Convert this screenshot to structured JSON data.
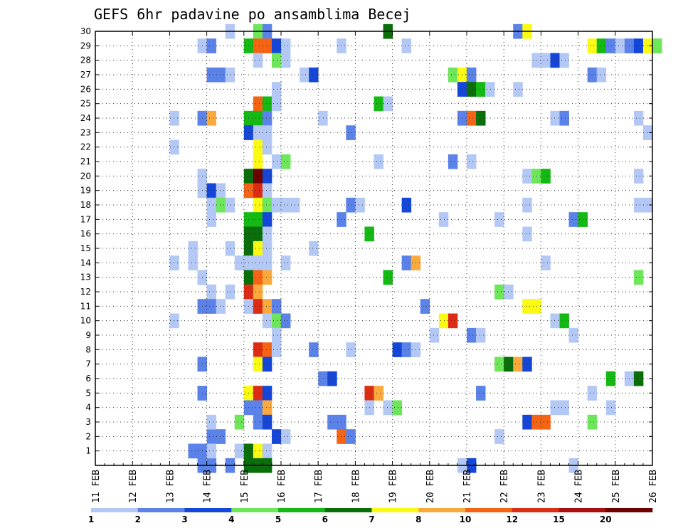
{
  "chart_data": {
    "type": "heatmap",
    "title": "GEFS 6hr padavine po ansamblima Becej",
    "xlabel": "",
    "ylabel": "",
    "y_ticks": [
      "1",
      "2",
      "3",
      "4",
      "5",
      "6",
      "7",
      "8",
      "9",
      "10",
      "11",
      "12",
      "13",
      "14",
      "15",
      "16",
      "17",
      "18",
      "19",
      "20",
      "21",
      "22",
      "23",
      "24",
      "25",
      "26",
      "27",
      "28",
      "29",
      "30"
    ],
    "x_ticks": [
      "11 FEB",
      "12 FEB",
      "13 FEB",
      "14 FEB",
      "15 FEB",
      "16 FEB",
      "17 FEB",
      "18 FEB",
      "19 FEB",
      "20 FEB",
      "21 FEB",
      "22 FEB",
      "23 FEB",
      "24 FEB",
      "25 FEB",
      "26 FEB"
    ],
    "x_range_days": [
      0,
      15
    ],
    "y_range": [
      0,
      30
    ],
    "grid": true,
    "colorbar": {
      "labels": [
        "1",
        "2",
        "3",
        "4",
        "5",
        "6",
        "7",
        "8",
        "10",
        "12",
        "15",
        "20"
      ],
      "colors": [
        "#b4c8f5",
        "#5a82e8",
        "#1446d8",
        "#6ee65a",
        "#14b914",
        "#0a6e0a",
        "#fafa14",
        "#faaa3c",
        "#f56414",
        "#dc2d14",
        "#aa0f0f",
        "#6e0000"
      ]
    },
    "cells": [
      [
        2.0,
        22,
        0
      ],
      [
        2.0,
        24,
        0
      ],
      [
        2.0,
        14,
        0
      ],
      [
        2.0,
        10,
        0
      ],
      [
        2.5,
        15,
        0
      ],
      [
        2.5,
        14,
        0
      ],
      [
        2.75,
        29,
        0
      ],
      [
        2.75,
        20,
        0
      ],
      [
        2.75,
        19,
        0
      ],
      [
        2.75,
        24,
        1
      ],
      [
        2.75,
        13,
        1
      ],
      [
        2.75,
        11,
        1
      ],
      [
        2.75,
        7,
        1
      ],
      [
        2.75,
        5,
        1
      ],
      [
        2.75,
        1,
        1
      ],
      [
        2.75,
        0,
        1
      ],
      [
        2.5,
        1,
        1
      ],
      [
        2.75,
        13,
        0
      ],
      [
        3.0,
        29,
        1
      ],
      [
        3.0,
        27,
        1
      ],
      [
        3.0,
        24,
        7
      ],
      [
        3.0,
        19,
        2
      ],
      [
        3.0,
        18,
        0
      ],
      [
        3.0,
        17,
        0
      ],
      [
        3.0,
        12,
        0
      ],
      [
        3.0,
        11,
        1
      ],
      [
        3.0,
        2,
        1
      ],
      [
        3.0,
        0,
        1
      ],
      [
        3.0,
        1,
        0
      ],
      [
        3.0,
        3,
        0
      ],
      [
        3.25,
        27,
        1
      ],
      [
        3.25,
        19,
        0
      ],
      [
        3.25,
        18,
        3
      ],
      [
        3.25,
        11,
        0
      ],
      [
        3.25,
        2,
        1
      ],
      [
        3.5,
        27,
        0
      ],
      [
        3.5,
        18,
        0
      ],
      [
        3.5,
        0,
        1
      ],
      [
        3.5,
        30,
        0
      ],
      [
        3.75,
        3,
        3
      ],
      [
        3.5,
        12,
        0
      ],
      [
        3.5,
        15,
        0
      ],
      [
        3.75,
        14,
        0
      ],
      [
        3.75,
        1,
        0
      ],
      [
        4.0,
        29,
        4
      ],
      [
        4.0,
        24,
        4
      ],
      [
        4.0,
        20,
        5
      ],
      [
        4.0,
        19,
        8
      ],
      [
        4.0,
        17,
        4
      ],
      [
        4.0,
        16,
        5
      ],
      [
        4.0,
        15,
        5
      ],
      [
        4.0,
        14,
        0
      ],
      [
        4.0,
        13,
        5
      ],
      [
        4.0,
        12,
        9
      ],
      [
        4.0,
        11,
        0
      ],
      [
        4.0,
        5,
        6
      ],
      [
        4.0,
        4,
        1
      ],
      [
        4.0,
        1,
        5
      ],
      [
        4.0,
        0,
        5
      ],
      [
        4.0,
        23,
        2
      ],
      [
        4.25,
        30,
        3
      ],
      [
        4.25,
        29,
        8
      ],
      [
        4.25,
        28,
        0
      ],
      [
        4.25,
        25,
        8
      ],
      [
        4.25,
        24,
        4
      ],
      [
        4.25,
        23,
        0
      ],
      [
        4.25,
        22,
        6
      ],
      [
        4.25,
        21,
        6
      ],
      [
        4.25,
        20,
        11
      ],
      [
        4.25,
        19,
        9
      ],
      [
        4.25,
        18,
        6
      ],
      [
        4.25,
        17,
        4
      ],
      [
        4.25,
        16,
        5
      ],
      [
        4.25,
        15,
        6
      ],
      [
        4.25,
        14,
        0
      ],
      [
        4.25,
        13,
        8
      ],
      [
        4.25,
        12,
        7
      ],
      [
        4.25,
        11,
        9
      ],
      [
        4.25,
        8,
        9
      ],
      [
        4.25,
        7,
        6
      ],
      [
        4.25,
        5,
        9
      ],
      [
        4.25,
        4,
        1
      ],
      [
        4.25,
        3,
        1
      ],
      [
        4.25,
        1,
        6
      ],
      [
        4.25,
        0,
        5
      ],
      [
        4.5,
        30,
        1
      ],
      [
        4.5,
        29,
        8
      ],
      [
        4.5,
        25,
        4
      ],
      [
        4.5,
        24,
        1
      ],
      [
        4.5,
        23,
        0
      ],
      [
        4.5,
        22,
        0
      ],
      [
        4.5,
        20,
        2
      ],
      [
        4.5,
        19,
        0
      ],
      [
        4.5,
        18,
        3
      ],
      [
        4.5,
        17,
        2
      ],
      [
        4.5,
        16,
        0
      ],
      [
        4.5,
        15,
        0
      ],
      [
        4.5,
        14,
        0
      ],
      [
        4.5,
        13,
        7
      ],
      [
        4.5,
        11,
        7
      ],
      [
        4.5,
        8,
        8
      ],
      [
        4.5,
        7,
        2
      ],
      [
        4.5,
        5,
        2
      ],
      [
        4.5,
        4,
        7
      ],
      [
        4.5,
        3,
        2
      ],
      [
        4.5,
        1,
        0
      ],
      [
        4.5,
        0,
        5
      ],
      [
        4.5,
        10,
        0
      ],
      [
        4.75,
        29,
        2
      ],
      [
        4.75,
        28,
        3
      ],
      [
        4.75,
        26,
        0
      ],
      [
        4.75,
        25,
        0
      ],
      [
        4.75,
        21,
        0
      ],
      [
        4.75,
        18,
        0
      ],
      [
        4.75,
        11,
        1
      ],
      [
        4.75,
        10,
        3
      ],
      [
        4.75,
        9,
        0
      ],
      [
        4.75,
        8,
        0
      ],
      [
        4.75,
        2,
        2
      ],
      [
        5.0,
        29,
        0
      ],
      [
        5.0,
        28,
        0
      ],
      [
        5.0,
        21,
        3
      ],
      [
        5.0,
        18,
        0
      ],
      [
        5.0,
        14,
        0
      ],
      [
        5.0,
        10,
        1
      ],
      [
        5.0,
        2,
        0
      ],
      [
        5.25,
        18,
        0
      ],
      [
        5.5,
        27,
        0
      ],
      [
        5.75,
        27,
        2
      ],
      [
        5.75,
        15,
        0
      ],
      [
        5.75,
        8,
        1
      ],
      [
        6.0,
        24,
        0
      ],
      [
        6.0,
        6,
        1
      ],
      [
        6.25,
        6,
        2
      ],
      [
        6.25,
        3,
        1
      ],
      [
        6.5,
        3,
        1
      ],
      [
        6.5,
        29,
        0
      ],
      [
        6.5,
        17,
        1
      ],
      [
        6.5,
        2,
        8
      ],
      [
        6.75,
        23,
        1
      ],
      [
        6.75,
        18,
        1
      ],
      [
        6.75,
        8,
        0
      ],
      [
        6.75,
        2,
        1
      ],
      [
        7.0,
        18,
        0
      ],
      [
        7.25,
        16,
        4
      ],
      [
        7.25,
        5,
        9
      ],
      [
        7.5,
        5,
        7
      ],
      [
        7.25,
        4,
        0
      ],
      [
        7.75,
        30,
        5
      ],
      [
        7.5,
        25,
        4
      ],
      [
        7.75,
        25,
        0
      ],
      [
        7.5,
        21,
        0
      ],
      [
        7.75,
        13,
        4
      ],
      [
        7.75,
        4,
        0
      ],
      [
        8.0,
        4,
        3
      ],
      [
        8.0,
        8,
        2
      ],
      [
        8.25,
        8,
        1
      ],
      [
        8.5,
        8,
        0
      ],
      [
        8.25,
        29,
        0
      ],
      [
        8.25,
        18,
        2
      ],
      [
        8.25,
        14,
        1
      ],
      [
        8.5,
        14,
        7
      ],
      [
        8.75,
        11,
        1
      ],
      [
        9.0,
        9,
        0
      ],
      [
        9.25,
        10,
        6
      ],
      [
        9.5,
        10,
        9
      ],
      [
        9.25,
        17,
        0
      ],
      [
        9.5,
        21,
        1
      ],
      [
        9.5,
        27,
        3
      ],
      [
        9.75,
        27,
        6
      ],
      [
        10.0,
        27,
        1
      ],
      [
        9.75,
        26,
        2
      ],
      [
        9.75,
        24,
        1
      ],
      [
        10.0,
        24,
        8
      ],
      [
        10.25,
        24,
        5
      ],
      [
        10.0,
        26,
        5
      ],
      [
        10.25,
        26,
        4
      ],
      [
        10.5,
        26,
        0
      ],
      [
        10.0,
        9,
        1
      ],
      [
        10.25,
        9,
        0
      ],
      [
        10.25,
        5,
        1
      ],
      [
        10.0,
        0,
        2
      ],
      [
        9.75,
        0,
        0
      ],
      [
        10.0,
        21,
        0
      ],
      [
        10.75,
        17,
        0
      ],
      [
        10.75,
        12,
        3
      ],
      [
        11.0,
        12,
        0
      ],
      [
        10.75,
        7,
        3
      ],
      [
        11.0,
        7,
        5
      ],
      [
        11.25,
        7,
        7
      ],
      [
        11.5,
        7,
        2
      ],
      [
        10.75,
        2,
        0
      ],
      [
        11.25,
        26,
        0
      ],
      [
        11.25,
        30,
        1
      ],
      [
        11.5,
        30,
        6
      ],
      [
        11.5,
        20,
        0
      ],
      [
        11.75,
        20,
        3
      ],
      [
        12.0,
        20,
        4
      ],
      [
        11.5,
        16,
        0
      ],
      [
        11.5,
        18,
        0
      ],
      [
        11.5,
        11,
        6
      ],
      [
        11.75,
        11,
        6
      ],
      [
        11.5,
        3,
        2
      ],
      [
        11.75,
        3,
        8
      ],
      [
        12.0,
        3,
        8
      ],
      [
        11.75,
        28,
        0
      ],
      [
        12.0,
        28,
        0
      ],
      [
        12.25,
        28,
        2
      ],
      [
        12.5,
        28,
        0
      ],
      [
        12.0,
        14,
        0
      ],
      [
        12.25,
        24,
        0
      ],
      [
        12.5,
        24,
        1
      ],
      [
        12.25,
        10,
        0
      ],
      [
        12.5,
        10,
        4
      ],
      [
        12.25,
        4,
        0
      ],
      [
        12.5,
        4,
        0
      ],
      [
        12.75,
        9,
        0
      ],
      [
        12.75,
        0,
        0
      ],
      [
        12.75,
        17,
        1
      ],
      [
        13.0,
        17,
        4
      ],
      [
        13.25,
        29,
        6
      ],
      [
        13.5,
        29,
        4
      ],
      [
        13.75,
        29,
        1
      ],
      [
        14.0,
        29,
        0
      ],
      [
        14.25,
        29,
        1
      ],
      [
        14.5,
        29,
        2
      ],
      [
        14.75,
        29,
        6
      ],
      [
        15.0,
        29,
        3
      ],
      [
        13.25,
        27,
        1
      ],
      [
        13.5,
        27,
        0
      ],
      [
        13.25,
        5,
        0
      ],
      [
        13.25,
        3,
        3
      ],
      [
        13.75,
        4,
        0
      ],
      [
        13.75,
        6,
        4
      ],
      [
        14.25,
        6,
        0
      ],
      [
        14.5,
        6,
        5
      ],
      [
        14.5,
        24,
        0
      ],
      [
        14.5,
        20,
        0
      ],
      [
        14.5,
        18,
        0
      ],
      [
        14.75,
        18,
        0
      ],
      [
        14.5,
        13,
        3
      ],
      [
        15.0,
        29,
        3
      ],
      [
        14.75,
        23,
        0
      ]
    ]
  }
}
